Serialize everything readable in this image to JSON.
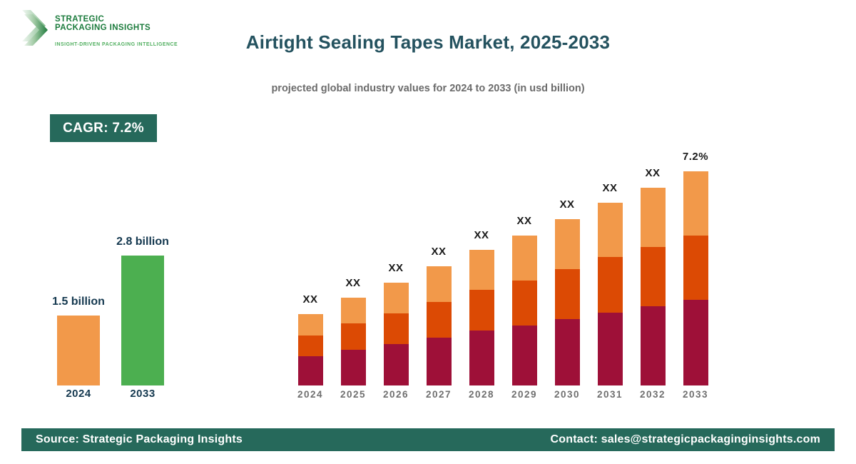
{
  "brand": {
    "logo_line1": "STRATEGIC",
    "logo_line2": "PACKAGING INSIGHTS",
    "tagline": "INSIGHT-DRIVEN PACKAGING INTELLIGENCE",
    "text_color": "#1B7B3C",
    "tagline_color": "#4FAE5E"
  },
  "header": {
    "title": "Airtight Sealing Tapes Market, 2025-2033",
    "subtitle": "projected global industry values for 2024 to 2033 (in usd billion)"
  },
  "cagr_badge": {
    "label": "CAGR: 7.2%",
    "bg": "#26695B",
    "text_color": "#FFFFFF"
  },
  "chart_data": [
    {
      "type": "bar",
      "name": "market-size-summary",
      "categories": [
        "2024",
        "2033"
      ],
      "values": [
        1.5,
        2.8
      ],
      "value_labels": [
        "1.5 billion",
        "2.8 billion"
      ],
      "bar_colors": [
        "#F2994A",
        "#4CAF50"
      ],
      "unit": "usd billion",
      "ylim": [
        0,
        3.0
      ],
      "grid": false,
      "legend": "none"
    },
    {
      "type": "bar",
      "subtype": "stacked",
      "name": "projection-2024-2033",
      "categories": [
        "2024",
        "2025",
        "2026",
        "2027",
        "2028",
        "2029",
        "2030",
        "2031",
        "2032",
        "2033"
      ],
      "series": [
        {
          "name": "segment-bottom",
          "color": "#9E1038",
          "values": [
            41,
            50,
            58,
            67,
            77,
            84,
            93,
            102,
            111,
            120
          ]
        },
        {
          "name": "segment-middle",
          "color": "#DC4A04",
          "values": [
            29,
            37,
            43,
            50,
            57,
            63,
            70,
            78,
            83,
            90
          ]
        },
        {
          "name": "segment-top",
          "color": "#F2994A",
          "values": [
            30,
            36,
            43,
            50,
            56,
            63,
            70,
            76,
            83,
            90
          ]
        }
      ],
      "bar_labels": [
        "XX",
        "XX",
        "XX",
        "XX",
        "XX",
        "XX",
        "XX",
        "XX",
        "XX",
        "7.2%"
      ],
      "value_unit": "relative-height (actual values masked as XX in figure)",
      "ylim": [
        0,
        300
      ],
      "grid": false,
      "legend": "none"
    }
  ],
  "footer": {
    "source": "Source: Strategic Packaging Insights",
    "contact": "Contact: sales@strategicpackaginginsights.com",
    "bg": "#26695B"
  },
  "colors": {
    "title": "#24525F",
    "subtitle": "#6B6B6B",
    "accent_green": "#26695B",
    "dark_label": "#14384F",
    "bar_label": "#1A1A1A",
    "axis_label": "#6F6F6F"
  }
}
